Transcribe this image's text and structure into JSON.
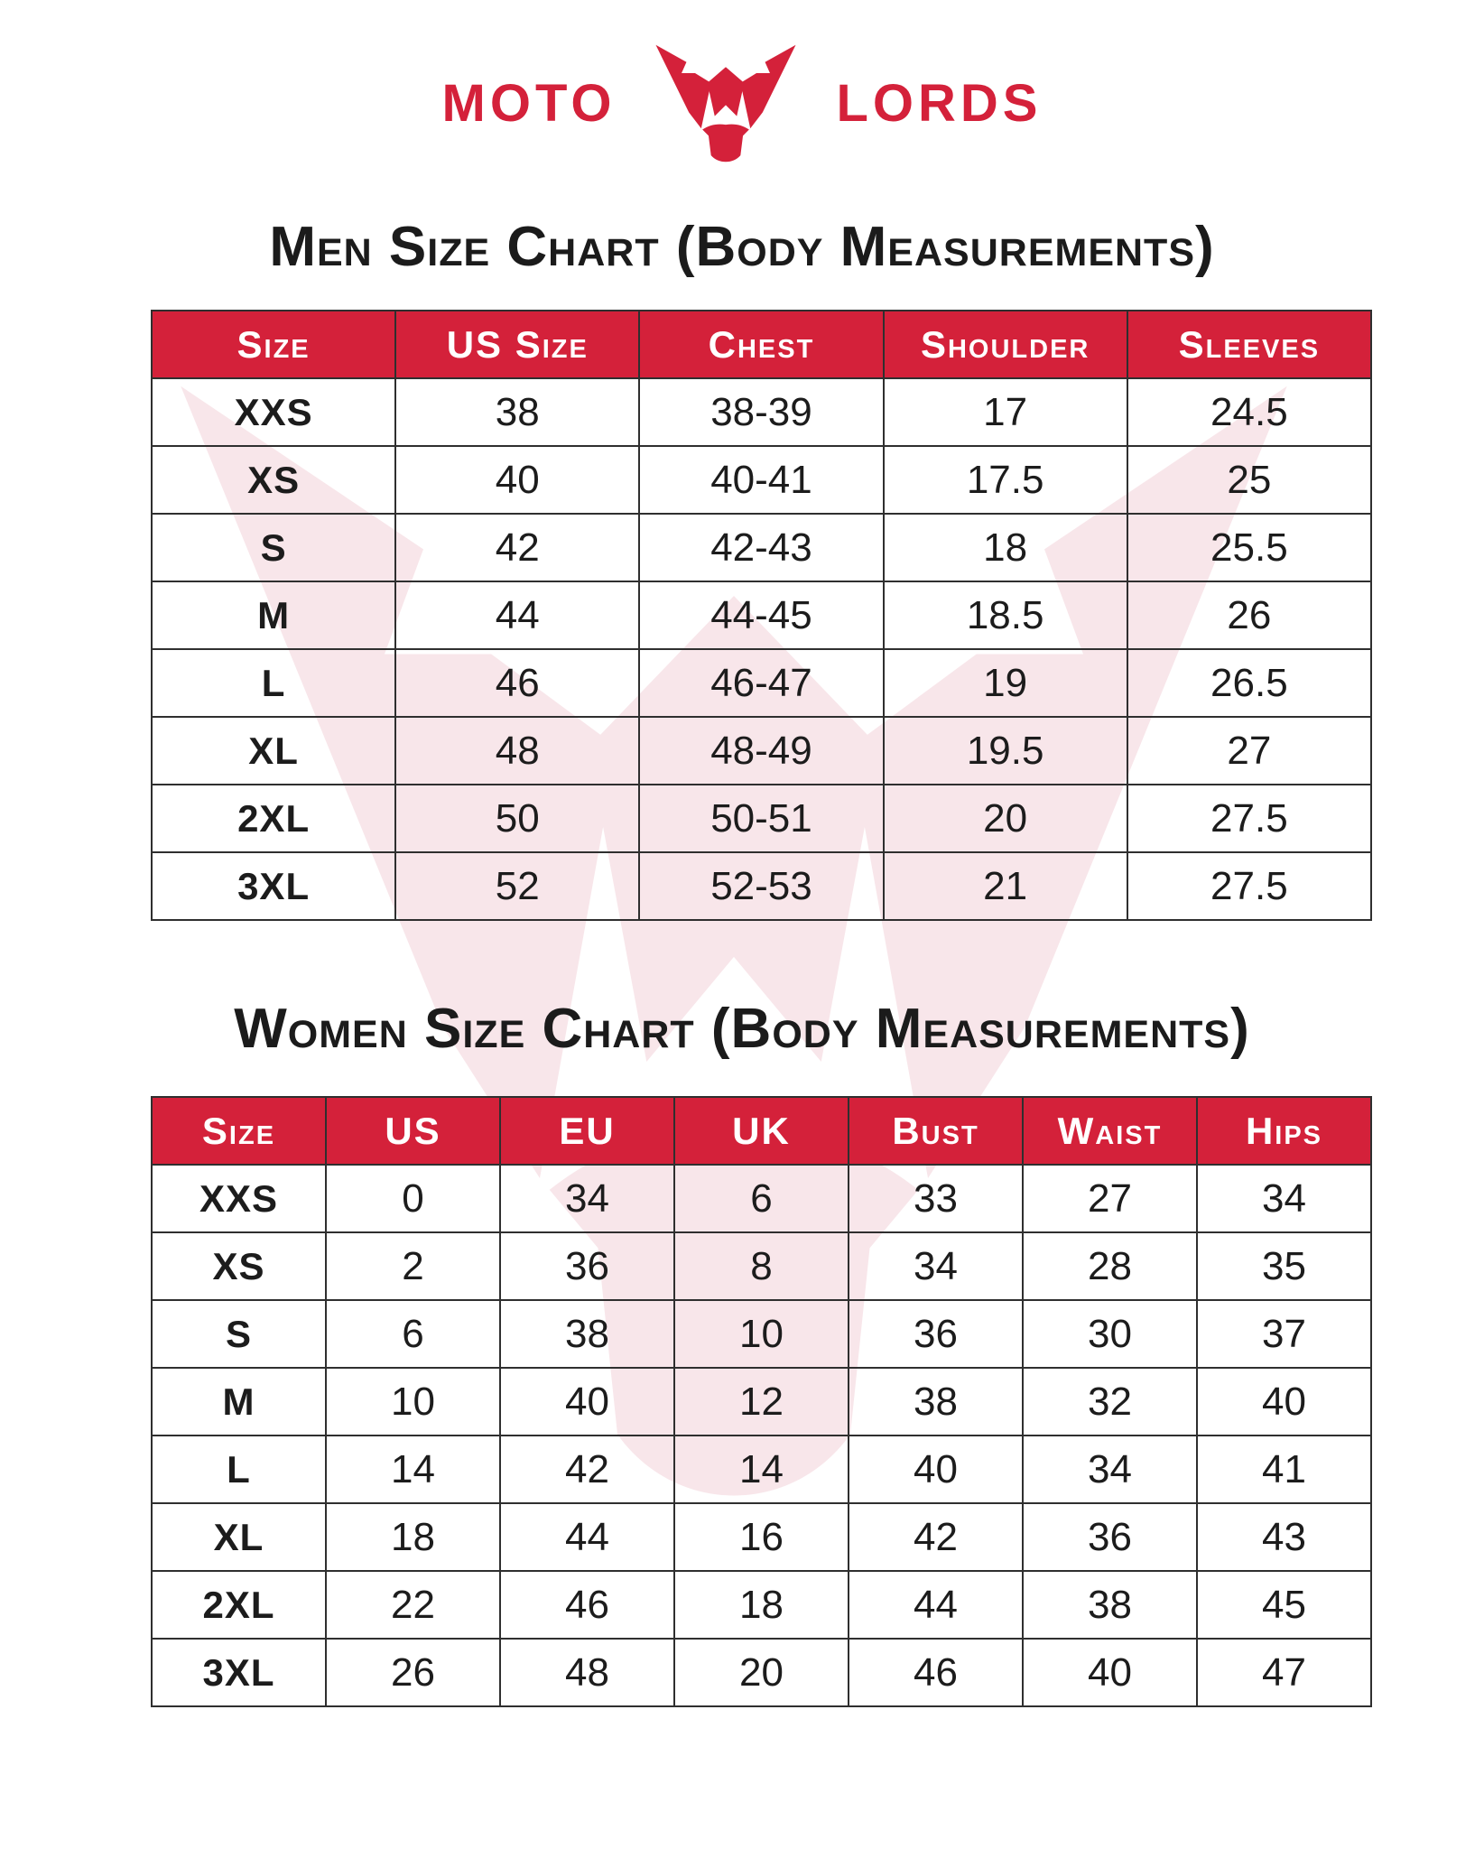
{
  "brand": {
    "left": "MOTO",
    "right": "LORDS"
  },
  "men_chart": {
    "title": "Men Size Chart (Body Measurements)",
    "columns": [
      "Size",
      "US Size",
      "Chest",
      "Shoulder",
      "Sleeves"
    ],
    "rows": [
      [
        "XXS",
        "38",
        "38-39",
        "17",
        "24.5"
      ],
      [
        "XS",
        "40",
        "40-41",
        "17.5",
        "25"
      ],
      [
        "S",
        "42",
        "42-43",
        "18",
        "25.5"
      ],
      [
        "M",
        "44",
        "44-45",
        "18.5",
        "26"
      ],
      [
        "L",
        "46",
        "46-47",
        "19",
        "26.5"
      ],
      [
        "XL",
        "48",
        "48-49",
        "19.5",
        "27"
      ],
      [
        "2XL",
        "50",
        "50-51",
        "20",
        "27.5"
      ],
      [
        "3XL",
        "52",
        "52-53",
        "21",
        "27.5"
      ]
    ]
  },
  "women_chart": {
    "title": "Women Size Chart (Body Measurements)",
    "columns": [
      "Size",
      "US",
      "EU",
      "UK",
      "Bust",
      "Waist",
      "Hips"
    ],
    "rows": [
      [
        "XXS",
        "0",
        "34",
        "6",
        "33",
        "27",
        "34"
      ],
      [
        "XS",
        "2",
        "36",
        "8",
        "34",
        "28",
        "35"
      ],
      [
        "S",
        "6",
        "38",
        "10",
        "36",
        "30",
        "37"
      ],
      [
        "M",
        "10",
        "40",
        "12",
        "38",
        "32",
        "40"
      ],
      [
        "L",
        "14",
        "42",
        "14",
        "40",
        "34",
        "41"
      ],
      [
        "XL",
        "18",
        "44",
        "16",
        "42",
        "36",
        "43"
      ],
      [
        "2XL",
        "22",
        "46",
        "18",
        "44",
        "38",
        "45"
      ],
      [
        "3XL",
        "26",
        "48",
        "20",
        "46",
        "40",
        "47"
      ]
    ]
  },
  "colors": {
    "accent": "#d4213a",
    "header_text": "#ffffff",
    "body_text": "#1c1c1c",
    "border": "#2f2f2f",
    "watermark": "#f8e6ea"
  }
}
